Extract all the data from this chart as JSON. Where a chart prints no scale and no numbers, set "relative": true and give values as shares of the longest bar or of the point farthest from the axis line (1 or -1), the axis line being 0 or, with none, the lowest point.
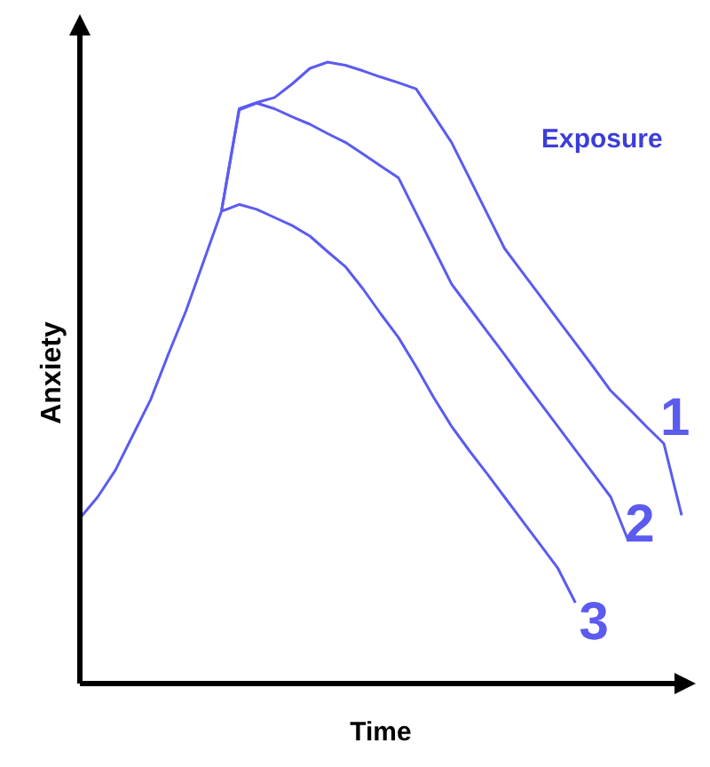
{
  "chart_data": {
    "type": "line",
    "relative": true,
    "xlabel": "Time",
    "ylabel": "Anxiety",
    "annotations": [
      "Exposure"
    ],
    "grid": false,
    "legend": false,
    "marker": "none",
    "line_style": "solid",
    "categories": [
      null,
      null,
      null,
      null,
      null,
      null,
      null,
      null,
      null,
      null,
      null,
      null,
      null,
      null,
      null,
      null,
      null,
      null,
      null,
      null,
      null,
      null,
      null,
      null,
      null,
      null,
      null,
      null,
      null,
      null,
      null,
      null,
      null,
      null,
      null
    ],
    "series": [
      {
        "name": "1",
        "color": "#5b5bf0",
        "values": [
          null,
          null,
          null,
          null,
          null,
          null,
          null,
          null,
          0.76,
          0.925,
          0.935,
          0.943,
          0.965,
          0.99,
          1,
          0.995,
          0.986,
          0.976,
          0.967,
          0.957,
          0.914,
          0.871,
          0.814,
          0.757,
          0.7,
          0.662,
          0.624,
          0.586,
          0.548,
          0.51,
          0.471,
          0.443,
          0.414,
          0.386,
          0.271
        ]
      },
      {
        "name": "2",
        "color": "#5b5bf0",
        "values": [
          null,
          null,
          null,
          null,
          null,
          null,
          null,
          null,
          0.76,
          0.923,
          0.934,
          0.925,
          0.912,
          0.9,
          0.885,
          0.871,
          0.852,
          0.833,
          0.814,
          0.757,
          0.7,
          0.643,
          0.605,
          0.567,
          0.529,
          0.49,
          0.452,
          0.414,
          0.376,
          0.338,
          0.3,
          0.229,
          null,
          null,
          null
        ]
      },
      {
        "name": "3",
        "color": "#5b5bf0",
        "values": [
          0.266,
          0.3,
          0.343,
          0.4,
          0.457,
          0.53,
          0.6,
          0.68,
          0.76,
          0.771,
          0.763,
          0.75,
          0.737,
          0.72,
          0.695,
          0.671,
          0.635,
          0.595,
          0.557,
          0.51,
          0.46,
          0.414,
          0.375,
          0.338,
          0.3,
          0.262,
          0.224,
          0.186,
          0.13,
          null,
          null,
          null,
          null,
          null,
          null
        ]
      }
    ]
  }
}
